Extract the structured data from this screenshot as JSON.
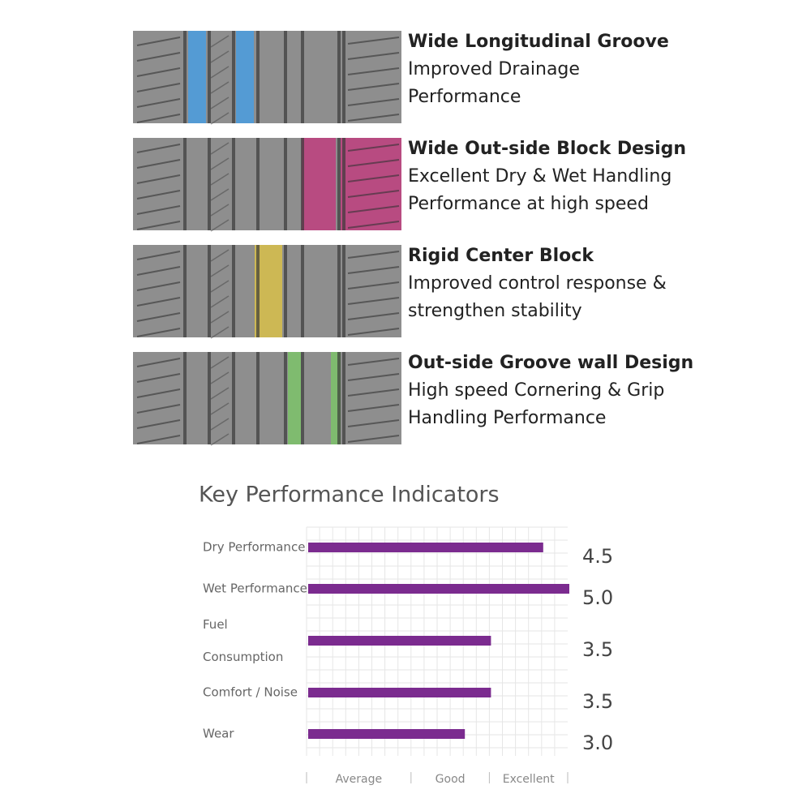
{
  "features": [
    {
      "title": "Wide Longitudinal Groove",
      "description": [
        "Improved Drainage",
        "Performance"
      ]
    },
    {
      "title": "Wide Out-side Block Design",
      "description": [
        "Excellent Dry & Wet Handling",
        "Performance at high speed"
      ]
    },
    {
      "title": "Rigid Center Block",
      "description": [
        "Improved control response &",
        "strengthen stability"
      ]
    },
    {
      "title": "Out-side Groove wall Design",
      "description": [
        "High speed Cornering & Grip",
        "Handling Performance"
      ]
    }
  ],
  "chart_data": {
    "type": "hbar",
    "title": "Key Performance Indicators",
    "categories": [
      "Dry Performance",
      "Wet Performance",
      "Fuel Consumption",
      "Comfort / Noise",
      "Wear"
    ],
    "values": [
      4.5,
      5.0,
      3.5,
      3.5,
      3.0
    ],
    "value_labels": [
      "4.5",
      "5.0",
      "3.5",
      "3.5",
      "3.0"
    ],
    "color": "#7b2b8f",
    "xlim": [
      0,
      5
    ],
    "xbands": [
      {
        "label": "Average",
        "range": [
          0,
          2
        ]
      },
      {
        "label": "Good",
        "range": [
          2,
          3.5
        ]
      },
      {
        "label": "Excellent",
        "range": [
          3.5,
          5
        ]
      }
    ],
    "grid": true
  }
}
